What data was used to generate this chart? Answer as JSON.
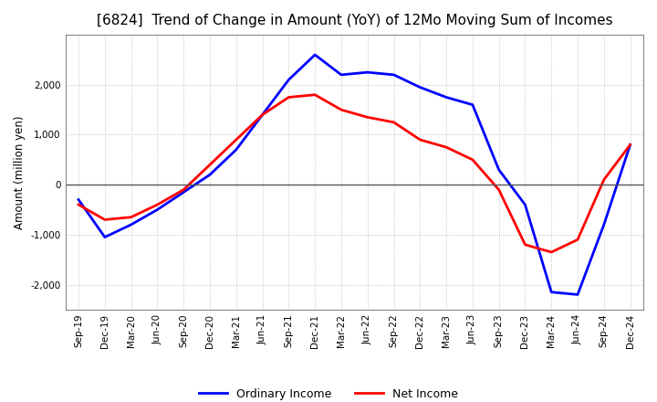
{
  "title": "[6824]  Trend of Change in Amount (YoY) of 12Mo Moving Sum of Incomes",
  "ylabel": "Amount (million yen)",
  "background_color": "#ffffff",
  "grid_color": "#aaaaaa",
  "title_fontsize": 11,
  "tick_labels": [
    "Sep-19",
    "Dec-19",
    "Mar-20",
    "Jun-20",
    "Sep-20",
    "Dec-20",
    "Mar-21",
    "Jun-21",
    "Sep-21",
    "Dec-21",
    "Mar-22",
    "Jun-22",
    "Sep-22",
    "Dec-22",
    "Mar-23",
    "Jun-23",
    "Sep-23",
    "Dec-23",
    "Mar-24",
    "Jun-24",
    "Sep-24",
    "Dec-24"
  ],
  "ordinary_income": [
    -300,
    -1050,
    -800,
    -500,
    -150,
    200,
    700,
    1400,
    2100,
    2600,
    2200,
    2250,
    2200,
    1950,
    1750,
    1600,
    300,
    -400,
    -2150,
    -2200,
    -800,
    800
  ],
  "net_income": [
    -400,
    -700,
    -650,
    -400,
    -100,
    400,
    900,
    1400,
    1750,
    1800,
    1500,
    1350,
    1250,
    900,
    750,
    500,
    -100,
    -1200,
    -1350,
    -1100,
    100,
    800
  ],
  "ordinary_color": "#0000ff",
  "net_color": "#ff0000",
  "line_width": 2.0,
  "ylim": [
    -2500,
    3000
  ],
  "yticks": [
    -2000,
    -1000,
    0,
    1000,
    2000
  ],
  "legend_labels": [
    "Ordinary Income",
    "Net Income"
  ]
}
